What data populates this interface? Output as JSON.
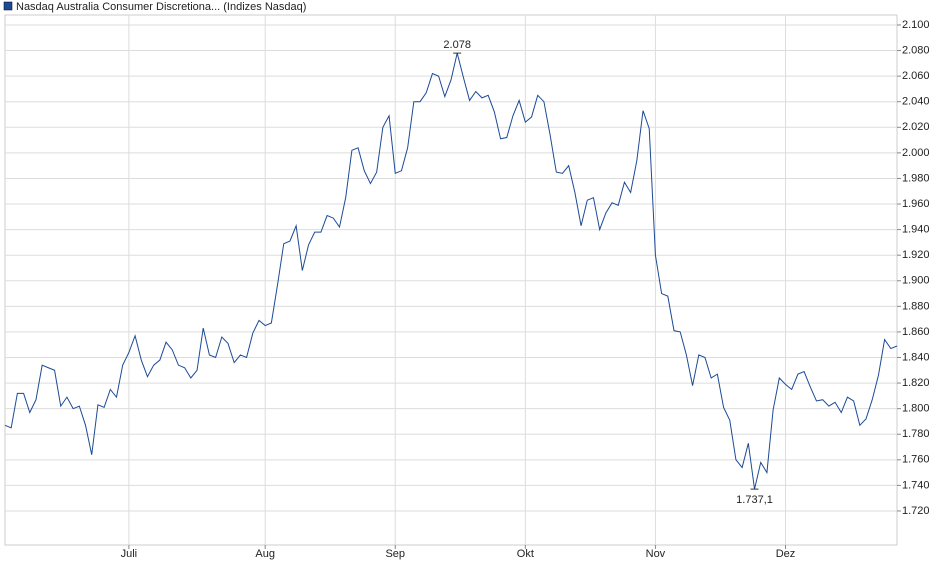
{
  "chart_data": {
    "type": "line",
    "title": "Nasdaq Australia Consumer Discretiona... (Indizes Nasdaq)",
    "categories": [
      null,
      null,
      null,
      null,
      null,
      null,
      null,
      null,
      null,
      null,
      null,
      null,
      null,
      null,
      null,
      null,
      null,
      null,
      null,
      null,
      "Juli",
      null,
      null,
      null,
      null,
      null,
      null,
      null,
      null,
      null,
      null,
      null,
      null,
      null,
      null,
      null,
      null,
      null,
      null,
      null,
      null,
      null,
      "Aug",
      null,
      null,
      null,
      null,
      null,
      null,
      null,
      null,
      null,
      null,
      null,
      null,
      null,
      null,
      null,
      null,
      null,
      null,
      null,
      null,
      "Sep",
      null,
      null,
      null,
      null,
      null,
      null,
      null,
      null,
      null,
      null,
      null,
      null,
      null,
      null,
      null,
      null,
      null,
      null,
      null,
      null,
      "Okt",
      null,
      null,
      null,
      null,
      null,
      null,
      null,
      null,
      null,
      null,
      null,
      null,
      null,
      null,
      null,
      null,
      null,
      null,
      null,
      null,
      "Nov",
      null,
      null,
      null,
      null,
      null,
      null,
      null,
      null,
      null,
      null,
      null,
      null,
      null,
      null,
      null,
      null,
      null,
      null,
      null,
      null,
      "Dez",
      null,
      null,
      null,
      null,
      null,
      null,
      null,
      null,
      null,
      null,
      null,
      null,
      null,
      null,
      null,
      null,
      null,
      null
    ],
    "series": [
      {
        "name": "Nasdaq Australia Consumer Discretiona... (Indizes Nasdaq)",
        "color": "#1c4a96",
        "values": [
          1787,
          1785,
          1812,
          1812,
          1797,
          1807,
          1834,
          1832,
          1830,
          1802,
          1809,
          1800,
          1802,
          1787,
          1764,
          1803,
          1801,
          1815,
          1809,
          1834,
          1844,
          1857,
          1838,
          1825,
          1834,
          1838,
          1852,
          1846,
          1834,
          1832,
          1824,
          1830,
          1863,
          1842,
          1840,
          1856,
          1851,
          1836,
          1842,
          1840,
          1859,
          1869,
          1865,
          1867,
          1897,
          1929,
          1931,
          1943,
          1908,
          1928,
          1938,
          1938,
          1951,
          1949,
          1942,
          1965,
          2002,
          2004,
          1986,
          1976,
          1985,
          2020,
          2029,
          1984,
          1986,
          2004,
          2040,
          2040,
          2047,
          2062,
          2060,
          2044,
          2057,
          2078,
          2059,
          2041,
          2048,
          2043,
          2045,
          2032,
          2011,
          2012,
          2029,
          2041,
          2024,
          2028,
          2045,
          2040,
          2014,
          1985,
          1984,
          1990,
          1969,
          1943,
          1963,
          1965,
          1940,
          1953,
          1961,
          1959,
          1977,
          1969,
          1994,
          2033,
          2019,
          1920,
          1890,
          1888,
          1861,
          1860,
          1842,
          1818,
          1842,
          1840,
          1824,
          1827,
          1801,
          1791,
          1760,
          1754,
          1773,
          1737.1,
          1758,
          1750,
          1799,
          1824,
          1819,
          1815,
          1827,
          1829,
          1817,
          1806,
          1807,
          1802,
          1805,
          1797,
          1809,
          1806,
          1787,
          1792,
          1807,
          1826,
          1854,
          1847,
          1849
        ],
        "value_labels": [
          null,
          null,
          null,
          null,
          null,
          null,
          null,
          null,
          null,
          null,
          null,
          null,
          null,
          null,
          null,
          null,
          null,
          null,
          null,
          null,
          null,
          null,
          null,
          null,
          null,
          null,
          null,
          null,
          null,
          null,
          null,
          null,
          null,
          null,
          null,
          null,
          null,
          null,
          null,
          null,
          null,
          null,
          null,
          null,
          null,
          null,
          null,
          null,
          null,
          null,
          null,
          null,
          null,
          null,
          null,
          null,
          null,
          null,
          null,
          null,
          null,
          null,
          null,
          null,
          null,
          null,
          null,
          null,
          null,
          null,
          null,
          null,
          null,
          "2.078",
          null,
          null,
          null,
          null,
          null,
          null,
          null,
          null,
          null,
          null,
          null,
          null,
          null,
          null,
          null,
          null,
          null,
          null,
          null,
          null,
          null,
          null,
          null,
          null,
          null,
          null,
          null,
          null,
          null,
          null,
          null,
          null,
          null,
          null,
          null,
          null,
          null,
          null,
          null,
          null,
          null,
          null,
          null,
          null,
          null,
          null,
          null,
          "1.737,1",
          null,
          null,
          null,
          null,
          null,
          null,
          null,
          null,
          null,
          null,
          null,
          null,
          null,
          null,
          null,
          null,
          null,
          null,
          null,
          null,
          null,
          null,
          null
        ]
      }
    ],
    "ylim": [
      1693.4,
      2107.8
    ],
    "yticks": [
      {
        "value": 1720,
        "label": "1.720"
      },
      {
        "value": 1740,
        "label": "1.740"
      },
      {
        "value": 1760,
        "label": "1.760"
      },
      {
        "value": 1780,
        "label": "1.780"
      },
      {
        "value": 1800,
        "label": "1.800"
      },
      {
        "value": 1820,
        "label": "1.820"
      },
      {
        "value": 1840,
        "label": "1.840"
      },
      {
        "value": 1860,
        "label": "1.860"
      },
      {
        "value": 1880,
        "label": "1.880"
      },
      {
        "value": 1900,
        "label": "1.900"
      },
      {
        "value": 1920,
        "label": "1.920"
      },
      {
        "value": 1940,
        "label": "1.940"
      },
      {
        "value": 1960,
        "label": "1.960"
      },
      {
        "value": 1980,
        "label": "1.980"
      },
      {
        "value": 2000,
        "label": "2.000"
      },
      {
        "value": 2020,
        "label": "2.020"
      },
      {
        "value": 2040,
        "label": "2.040"
      },
      {
        "value": 2060,
        "label": "2.060"
      },
      {
        "value": 2080,
        "label": "2.080"
      },
      {
        "value": 2100,
        "label": "2.100"
      }
    ],
    "grid": true
  }
}
